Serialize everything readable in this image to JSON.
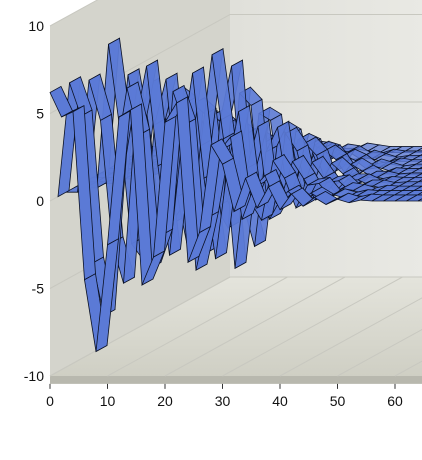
{
  "chart_data": {
    "type": "line",
    "subtype": "3d-ribbon",
    "title": "",
    "xlabel": "",
    "ylabel": "",
    "y_ticks": [
      10,
      5,
      0,
      -5,
      -10
    ],
    "x_ticks": [
      0,
      10,
      20,
      30,
      40,
      50,
      60
    ],
    "ylim": [
      -10,
      10
    ],
    "xlim": [
      0,
      65
    ],
    "grid": true,
    "legend": "none",
    "colors": {
      "ribbon": "#5b7ad6",
      "ribbon_edge": "#0b1226",
      "wall": "#e6e6e0",
      "floor": "#d9d9cf"
    },
    "series": [
      {
        "values": [
          6.2,
          4.8,
          5.1,
          -4.5,
          -8.6,
          -2.5,
          4.8,
          5.2,
          -4.8,
          -3.2,
          4.5,
          5.6,
          -3.5,
          -1.8,
          3.2,
          2.1,
          -0.6,
          1.3,
          -0.4,
          0.8,
          -0.5,
          0.4,
          -0.3,
          0.2,
          -0.2,
          0.1,
          -0.1,
          0.05,
          0,
          0,
          0,
          0,
          0,
          0,
          0,
          0
        ]
      },
      {
        "values": [
          0,
          6.5,
          4.6,
          -3.8,
          -6.8,
          2.1,
          6.2,
          3.5,
          -4.1,
          -2.2,
          6.0,
          4.1,
          -4.2,
          -1.2,
          2.6,
          3.4,
          -1.3,
          0.5,
          1.2,
          -0.4,
          0.3,
          -0.3,
          0.2,
          -0.2,
          0.1,
          -0.1,
          0.05,
          0,
          0,
          0,
          0,
          0,
          0,
          0,
          0,
          0
        ]
      },
      {
        "values": [
          0,
          0,
          6.4,
          4.1,
          -2.9,
          -5.2,
          3.8,
          7.2,
          1.5,
          -3.6,
          2.5,
          6.8,
          0.8,
          -3.8,
          1.2,
          4.6,
          -0.5,
          -1.6,
          1.8,
          0.8,
          -0.9,
          0.4,
          0.5,
          -0.3,
          0.2,
          0.1,
          -0.1,
          0.05,
          0,
          0,
          0,
          0,
          0,
          0,
          0,
          0
        ]
      },
      {
        "values": [
          0,
          0,
          0,
          8.2,
          3.3,
          -3.2,
          -4.1,
          3.6,
          6.2,
          -0.5,
          -3.8,
          2.4,
          7.6,
          2.8,
          -4.6,
          1.1,
          3.5,
          -1.8,
          -0.6,
          1.5,
          0.5,
          -0.7,
          0.3,
          0.4,
          -0.2,
          0.1,
          0.1,
          -0.05,
          0,
          0,
          0,
          0,
          0,
          0,
          0,
          0
        ]
      },
      {
        "values": [
          0,
          0,
          0,
          0,
          6.2,
          2.4,
          -3.5,
          -2.2,
          5.1,
          4.6,
          -2.4,
          -3.9,
          3.6,
          6.7,
          -1.2,
          -3.6,
          1.8,
          3.2,
          -1.1,
          -0.8,
          1.2,
          0.3,
          -0.5,
          0.2,
          0.2,
          -0.1,
          0.05,
          0,
          0,
          0,
          0,
          0,
          0,
          0,
          0,
          0
        ]
      },
      {
        "values": [
          0,
          0,
          0,
          0,
          0,
          5.4,
          1.8,
          -2.6,
          -1.6,
          4.3,
          3.7,
          -1.6,
          -2.8,
          4.9,
          4.2,
          -2.4,
          -1.9,
          2.6,
          1.6,
          -1.2,
          -0.4,
          0.9,
          0.3,
          -0.4,
          0.1,
          0.1,
          -0.05,
          0,
          0,
          0,
          0,
          0,
          0,
          0,
          0,
          0
        ]
      },
      {
        "values": [
          0,
          0,
          0,
          0,
          0,
          0,
          4.6,
          1.2,
          -1.8,
          -1.1,
          3.4,
          2.8,
          -1.2,
          -2.1,
          3.5,
          3.1,
          -1.6,
          -1.3,
          1.8,
          1.1,
          -0.8,
          -0.3,
          0.6,
          0.2,
          -0.2,
          0.05,
          0,
          0,
          0,
          0,
          0,
          0,
          0,
          0,
          0,
          0
        ]
      },
      {
        "values": [
          0,
          0,
          0,
          0,
          0,
          0,
          0,
          3.6,
          0.9,
          -1.2,
          -0.7,
          2.5,
          2.0,
          -0.8,
          -1.4,
          2.4,
          2.0,
          -0.9,
          -0.8,
          1.1,
          0.6,
          -0.4,
          -0.2,
          0.3,
          0.1,
          -0.1,
          0,
          0,
          0,
          0,
          0,
          0,
          0,
          0,
          0,
          0
        ]
      },
      {
        "values": [
          0,
          0,
          0,
          0,
          0,
          0,
          0,
          0,
          2.8,
          0.6,
          -0.8,
          -0.5,
          1.7,
          1.3,
          -0.5,
          -0.9,
          1.5,
          1.2,
          -0.5,
          -0.4,
          0.6,
          0.3,
          -0.2,
          -0.1,
          0.1,
          0,
          0,
          0,
          0,
          0,
          0,
          0,
          0,
          0,
          0,
          0
        ]
      },
      {
        "values": [
          0,
          0,
          0,
          0,
          0,
          0,
          0,
          0,
          0,
          2.0,
          0.4,
          -0.5,
          -0.3,
          1.1,
          0.8,
          -0.3,
          -0.5,
          0.8,
          0.6,
          -0.2,
          -0.2,
          0.3,
          0.1,
          -0.1,
          0,
          0,
          0,
          0,
          0,
          0,
          0,
          0,
          0,
          0,
          0,
          0
        ]
      },
      {
        "values": [
          0,
          0,
          0,
          0,
          0,
          0,
          0,
          0,
          0,
          0,
          1.3,
          0.2,
          -0.3,
          -0.2,
          0.6,
          0.4,
          -0.2,
          -0.3,
          0.4,
          0.3,
          -0.1,
          -0.1,
          0.1,
          0,
          0,
          0,
          0,
          0,
          0,
          0,
          0,
          0,
          0,
          0,
          0,
          0
        ]
      },
      {
        "values": [
          0,
          0,
          0,
          0,
          0,
          0,
          0,
          0,
          0,
          0,
          0,
          0.7,
          0.1,
          -0.1,
          -0.1,
          0.3,
          0.2,
          -0.1,
          -0.1,
          0.2,
          0.1,
          0,
          0,
          0,
          0,
          0,
          0,
          0,
          0,
          0,
          0,
          0,
          0,
          0,
          0,
          0
        ]
      }
    ]
  }
}
